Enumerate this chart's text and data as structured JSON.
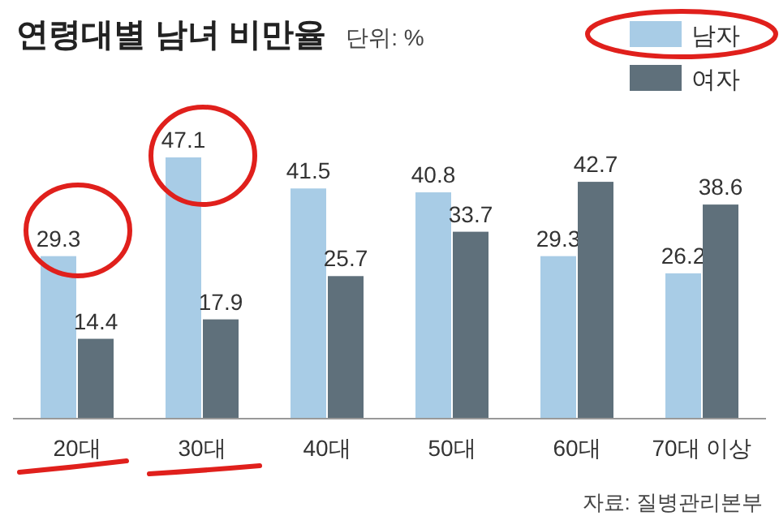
{
  "chart_data": {
    "type": "bar",
    "title": "연령대별 남녀 비만율",
    "subtitle": "단위: %",
    "categories": [
      "20대",
      "30대",
      "40대",
      "50대",
      "60대",
      "70대 이상"
    ],
    "series": [
      {
        "name": "남자",
        "color": "#a8cce6",
        "values": [
          29.3,
          47.1,
          41.5,
          40.8,
          29.3,
          26.2
        ]
      },
      {
        "name": "여자",
        "color": "#5f707b",
        "values": [
          14.4,
          17.9,
          25.7,
          33.7,
          42.7,
          38.6
        ]
      }
    ],
    "data_labels": true,
    "legend": "top right",
    "annotations": [
      "자료: 질병관리본부"
    ]
  }
}
